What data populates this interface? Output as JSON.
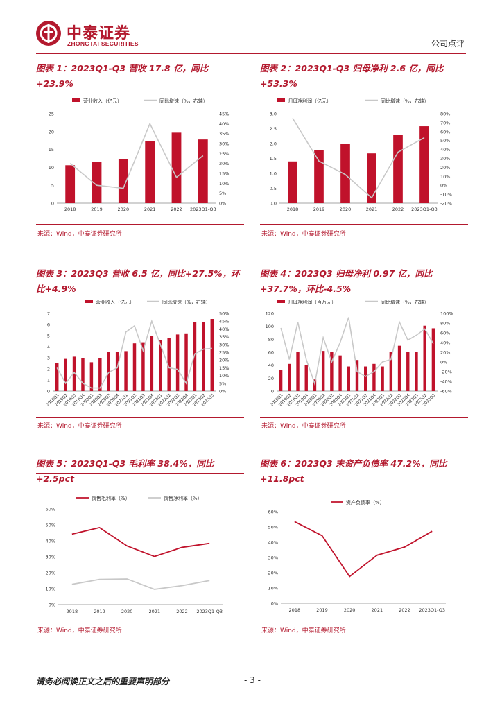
{
  "header": {
    "company_cn": "中泰证券",
    "company_en": "ZHONGTAI SECURITIES",
    "report_type": "公司点评"
  },
  "colors": {
    "brand": "#b3192e",
    "bar": "#c0122b",
    "grey_line": "#c8c8c8"
  },
  "footer": {
    "note": "请务必阅读正文之后的重要声明部分",
    "page": "- 3 -"
  },
  "panels": [
    {
      "title": "图表 1：2023Q1-Q3 营收 17.8 亿，同比+23.9%",
      "source": "来源：Wind，中泰证券研究所"
    },
    {
      "title": "图表 2：2023Q1-Q3 归母净利 2.6 亿，同比+53.3%",
      "source": "来源：Wind，中泰证券研究所"
    },
    {
      "title": "图表 3：2023Q3 营收 6.5 亿，同比+27.5%，环比+4.9%",
      "source": "来源：Wind，中泰证券研究所"
    },
    {
      "title": "图表 4：2023Q3 归母净利 0.97 亿，同比+37.7%，环比-4.5%",
      "source": "来源：Wind，中泰证券研究所"
    },
    {
      "title": "图表 5：2023Q1-Q3 毛利率 38.4%，同比+2.5pct",
      "source": "来源：Wind，中泰证券研究所"
    },
    {
      "title": "图表 6：2023Q3 末资产负债率 47.2%，同比+11.8pct",
      "source": "来源：Wind，中泰证券研究所"
    }
  ],
  "chart_data": [
    {
      "type": "bar+line",
      "categories": [
        "2018",
        "2019",
        "2020",
        "2021",
        "2022",
        "2023Q1-Q3"
      ],
      "series": [
        {
          "name": "营业收入（亿元）",
          "kind": "bar",
          "axis": "left",
          "values": [
            10.6,
            11.5,
            12.3,
            17.4,
            19.7,
            17.8
          ]
        },
        {
          "name": "同比增速（%，右轴）",
          "kind": "line",
          "axis": "right",
          "values": [
            20,
            9,
            7.5,
            40,
            13,
            23.9
          ]
        }
      ],
      "left_axis": {
        "min": 0,
        "max": 25,
        "ticks": [
          "0",
          "5",
          "10",
          "15",
          "20",
          "25"
        ]
      },
      "right_axis": {
        "min": 0,
        "max": 45,
        "ticks": [
          "0%",
          "5%",
          "10%",
          "15%",
          "20%",
          "25%",
          "30%",
          "35%",
          "40%",
          "45%"
        ]
      }
    },
    {
      "type": "bar+line",
      "categories": [
        "2018",
        "2019",
        "2020",
        "2021",
        "2022",
        "2023Q1-Q3"
      ],
      "series": [
        {
          "name": "归母净利润（亿元）",
          "kind": "bar",
          "axis": "left",
          "values": [
            1.4,
            1.77,
            1.98,
            1.67,
            2.29,
            2.58
          ]
        },
        {
          "name": "同比增速（%，右轴）",
          "kind": "line",
          "axis": "right",
          "values": [
            75,
            27,
            12,
            -14,
            37,
            53.3
          ]
        }
      ],
      "left_axis": {
        "min": 0,
        "max": 3,
        "ticks": [
          "0.0",
          "0.5",
          "1.0",
          "1.5",
          "2.0",
          "2.5",
          "3.0"
        ]
      },
      "right_axis": {
        "min": -20,
        "max": 80,
        "ticks": [
          "-20%",
          "-10%",
          "0%",
          "10%",
          "20%",
          "30%",
          "40%",
          "50%",
          "60%",
          "70%",
          "80%"
        ]
      }
    },
    {
      "type": "bar+line",
      "categories": [
        "2019Q1",
        "2019Q2",
        "2019Q3",
        "2019Q4",
        "2020Q1",
        "2020Q2",
        "2020Q3",
        "2020Q4",
        "2021Q1",
        "2021Q2",
        "2021Q3",
        "2021Q4",
        "2022Q1",
        "2022Q2",
        "2022Q3",
        "2022Q4",
        "2023Q1",
        "2023Q2",
        "2023Q3"
      ],
      "series": [
        {
          "name": "营业收入（亿元）",
          "kind": "bar",
          "axis": "left",
          "values": [
            2.5,
            2.9,
            3.1,
            3.0,
            2.6,
            3.0,
            3.5,
            3.5,
            3.6,
            4.3,
            4.4,
            5.0,
            4.6,
            4.8,
            5.1,
            5.2,
            6.2,
            6.2,
            6.5
          ]
        },
        {
          "name": "同比增速（%，右轴）",
          "kind": "line",
          "axis": "right",
          "values": [
            15,
            5,
            12,
            5,
            2,
            2,
            12,
            15,
            38,
            42,
            26,
            45,
            30,
            15,
            14,
            5,
            24,
            27,
            27.5
          ]
        }
      ],
      "left_axis": {
        "min": 0,
        "max": 7,
        "ticks": [
          "0",
          "1",
          "2",
          "3",
          "4",
          "5",
          "6",
          "7"
        ]
      },
      "right_axis": {
        "min": 0,
        "max": 50,
        "ticks": [
          "0%",
          "5%",
          "10%",
          "15%",
          "20%",
          "25%",
          "30%",
          "35%",
          "40%",
          "45%",
          "50%"
        ]
      }
    },
    {
      "type": "bar+line",
      "categories": [
        "2019Q1",
        "2019Q2",
        "2019Q3",
        "2019Q4",
        "2020Q1",
        "2020Q2",
        "2020Q3",
        "2020Q4",
        "2021Q1",
        "2021Q2",
        "2021Q3",
        "2021Q4",
        "2022Q1",
        "2022Q2",
        "2022Q3",
        "2022Q4",
        "2023Q1",
        "2023Q2",
        "2023Q3"
      ],
      "series": [
        {
          "name": "归母净利润（百万元）",
          "kind": "bar",
          "axis": "left",
          "values": [
            33,
            42,
            61,
            40,
            18,
            62,
            60,
            55,
            38,
            48,
            38,
            42,
            38,
            60,
            70,
            60,
            60,
            101,
            97
          ]
        },
        {
          "name": "同比增速（%，右轴）",
          "kind": "line",
          "axis": "right",
          "values": [
            70,
            5,
            82,
            5,
            -45,
            50,
            0,
            40,
            92,
            -20,
            -30,
            -20,
            0,
            5,
            82,
            45,
            55,
            68,
            37.7
          ]
        }
      ],
      "left_axis": {
        "min": 0,
        "max": 120,
        "ticks": [
          "0",
          "20",
          "40",
          "60",
          "80",
          "100",
          "120"
        ]
      },
      "right_axis": {
        "min": -60,
        "max": 100,
        "ticks": [
          "-60%",
          "-40%",
          "-20%",
          "0%",
          "20%",
          "40%",
          "60%",
          "80%",
          "100%"
        ]
      }
    },
    {
      "type": "line",
      "categories": [
        "2018",
        "2019",
        "2020",
        "2021",
        "2022",
        "2023Q1-Q3"
      ],
      "series": [
        {
          "name": "销售毛利率（%）",
          "color": "#c0122b",
          "values": [
            44.2,
            48.3,
            36.8,
            30.2,
            35.9,
            38.4
          ]
        },
        {
          "name": "销售净利率（%）",
          "color": "#c8c8c8",
          "values": [
            12.7,
            15.8,
            16.1,
            9.6,
            11.9,
            15.1
          ]
        }
      ],
      "y_axis": {
        "min": 0,
        "max": 60,
        "ticks": [
          "0%",
          "10%",
          "20%",
          "30%",
          "40%",
          "50%",
          "60%"
        ]
      }
    },
    {
      "type": "line",
      "categories": [
        "2018",
        "2019",
        "2020",
        "2021",
        "2022",
        "2023Q1-Q3"
      ],
      "series": [
        {
          "name": "资产负债率（%）",
          "color": "#c0122b",
          "values": [
            53.5,
            44.3,
            17.5,
            31.5,
            36.8,
            47.2
          ]
        }
      ],
      "y_axis": {
        "min": 0,
        "max": 60,
        "ticks": [
          "0%",
          "10%",
          "20%",
          "30%",
          "40%",
          "50%",
          "60%"
        ]
      }
    }
  ]
}
